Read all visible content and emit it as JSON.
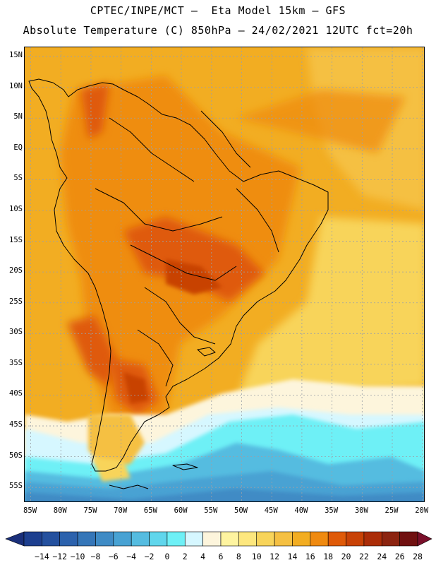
{
  "header": {
    "line1": "CPTEC/INPE/MCT –  Eta Model 15km – GFS",
    "line2": "Absolute Temperature (C) 850hPa – 24/02/2021 12UTC fct=20h"
  },
  "axes": {
    "lat_labels": [
      "15N",
      "10N",
      "5N",
      "EQ",
      "5S",
      "10S",
      "15S",
      "20S",
      "25S",
      "30S",
      "35S",
      "40S",
      "45S",
      "50S",
      "55S"
    ],
    "lon_labels": [
      "85W",
      "80W",
      "75W",
      "70W",
      "65W",
      "60W",
      "55W",
      "50W",
      "45W",
      "40W",
      "35W",
      "30W",
      "25W",
      "20W"
    ],
    "lat_range": [
      -57.5,
      16.5
    ],
    "lon_range": [
      -86,
      -19.5
    ]
  },
  "colorbar": {
    "labels": [
      "-14",
      "-12",
      "-10",
      "-8",
      "-6",
      "-4",
      "-2",
      "0",
      "2",
      "4",
      "6",
      "8",
      "10",
      "12",
      "14",
      "16",
      "18",
      "20",
      "22",
      "24",
      "26",
      "28"
    ],
    "colors": [
      "#1d3f8f",
      "#24509e",
      "#2c62ad",
      "#3576b8",
      "#3f8bc5",
      "#48a2d3",
      "#55bce0",
      "#60d6ec",
      "#6ef0f6",
      "#d6f7ff",
      "#fdf5dc",
      "#fef4a0",
      "#fde77e",
      "#f8d45a",
      "#f5c042",
      "#f2ad22",
      "#ef8a10",
      "#df5a08",
      "#c84206",
      "#ab2d08",
      "#8c2410",
      "#701010"
    ],
    "low_arrow_color": "#1a2f7a",
    "high_arrow_color": "#7a0f2a"
  }
}
